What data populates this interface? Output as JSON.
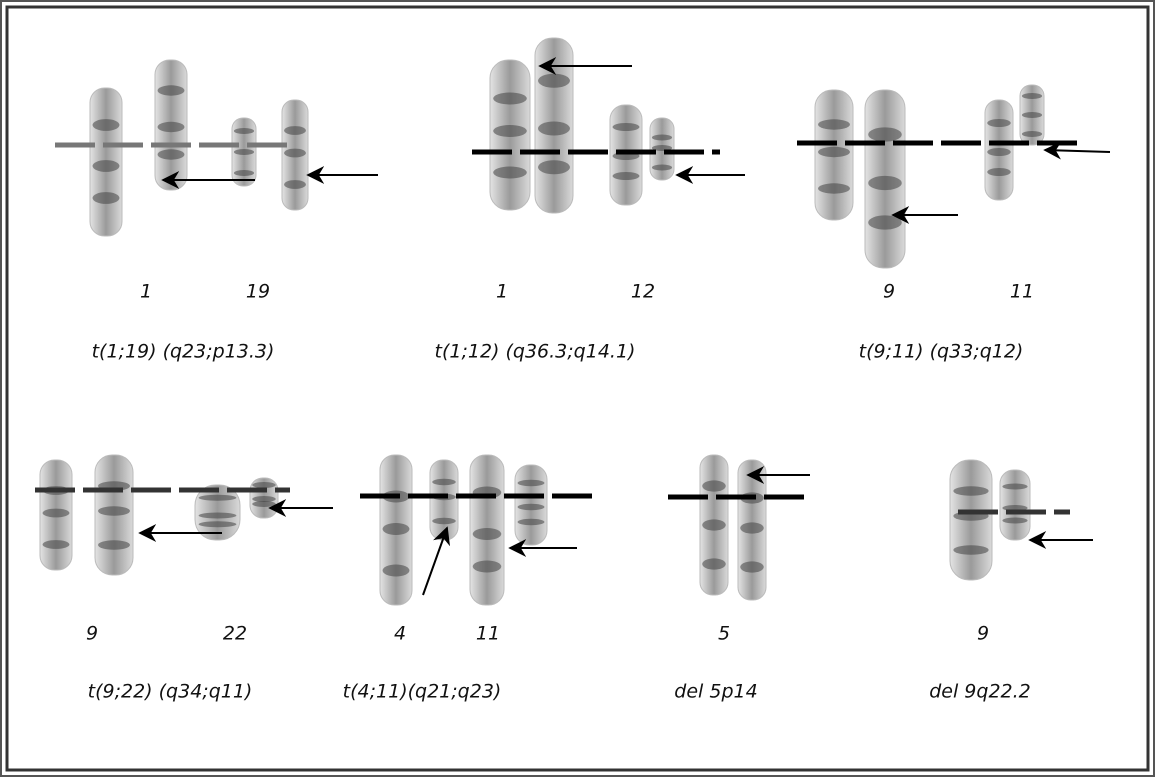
{
  "panels": [
    {
      "labels": [
        "1",
        "19"
      ],
      "caption": "t(1;19) (q23;p13.3)"
    },
    {
      "labels": [
        "1",
        "12"
      ],
      "caption": "t(1;12) (q36.3;q14.1)"
    },
    {
      "labels": [
        "9",
        "11"
      ],
      "caption": "t(9;11) (q33;q12)"
    },
    {
      "labels": [
        "9",
        "22"
      ],
      "caption": "t(9;22) (q34;q11)"
    },
    {
      "labels": [
        "4",
        "11"
      ],
      "caption": "t(4;11)(q21;q23)"
    },
    {
      "labels": [
        "5"
      ],
      "caption": "del 5p14"
    },
    {
      "labels": [
        "9"
      ],
      "caption": "del 9q22.2"
    }
  ]
}
